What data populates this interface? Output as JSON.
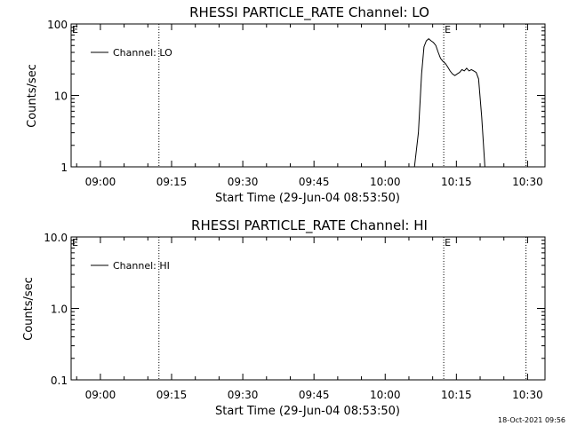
{
  "footer": {
    "timestamp": "18-Oct-2021 09:56"
  },
  "chart_data": [
    {
      "type": "line",
      "title": "RHESSI PARTICLE_RATE Channel: LO",
      "xlabel": "Start Time (29-Jun-04 08:53:50)",
      "ylabel": "Counts/sec",
      "y_scale": "log",
      "ylim": [
        1,
        100
      ],
      "y_ticks": [
        "1",
        "10",
        "100"
      ],
      "x_ticks": [
        "09:00",
        "09:15",
        "09:30",
        "09:45",
        "10:00",
        "10:15",
        "10:30"
      ],
      "legend": {
        "label": "Channel: LO",
        "position": "top-left"
      },
      "markers": [
        {
          "label": "E",
          "time": "08:53:50"
        },
        {
          "label": "",
          "time": "09:12:20"
        },
        {
          "label": "E",
          "time": "10:12:20"
        },
        {
          "label": "",
          "time": "10:29:40"
        }
      ],
      "series": [
        {
          "name": "Channel: LO",
          "x": [
            "10:06:10",
            "10:07:00",
            "10:07:40",
            "10:08:10",
            "10:08:40",
            "10:09:10",
            "10:09:40",
            "10:10:10",
            "10:10:40",
            "10:11:10",
            "10:11:40",
            "10:12:10",
            "10:12:40",
            "10:13:10",
            "10:13:40",
            "10:14:10",
            "10:14:40",
            "10:15:10",
            "10:15:40",
            "10:16:10",
            "10:16:40",
            "10:17:10",
            "10:17:40",
            "10:18:10",
            "10:18:40",
            "10:19:10",
            "10:19:40",
            "10:20:20",
            "10:21:00"
          ],
          "values": [
            1,
            3,
            20,
            48,
            58,
            62,
            58,
            55,
            50,
            40,
            33,
            30,
            28,
            25,
            22,
            20,
            19,
            20,
            21,
            23,
            22,
            24,
            22,
            23,
            22,
            21,
            17,
            5,
            1
          ]
        }
      ]
    },
    {
      "type": "line",
      "title": "RHESSI PARTICLE_RATE Channel: HI",
      "xlabel": "Start Time (29-Jun-04 08:53:50)",
      "ylabel": "Counts/sec",
      "y_scale": "log",
      "ylim": [
        0.1,
        10
      ],
      "y_ticks": [
        "0.1",
        "1.0",
        "10.0"
      ],
      "x_ticks": [
        "09:00",
        "09:15",
        "09:30",
        "09:45",
        "10:00",
        "10:15",
        "10:30"
      ],
      "legend": {
        "label": "Channel: HI",
        "position": "top-left"
      },
      "markers": [
        {
          "label": "E",
          "time": "08:53:50"
        },
        {
          "label": "",
          "time": "09:12:20"
        },
        {
          "label": "E",
          "time": "10:12:20"
        },
        {
          "label": "",
          "time": "10:29:40"
        }
      ],
      "series": [
        {
          "name": "Channel: HI",
          "x": [],
          "values": []
        }
      ]
    }
  ]
}
